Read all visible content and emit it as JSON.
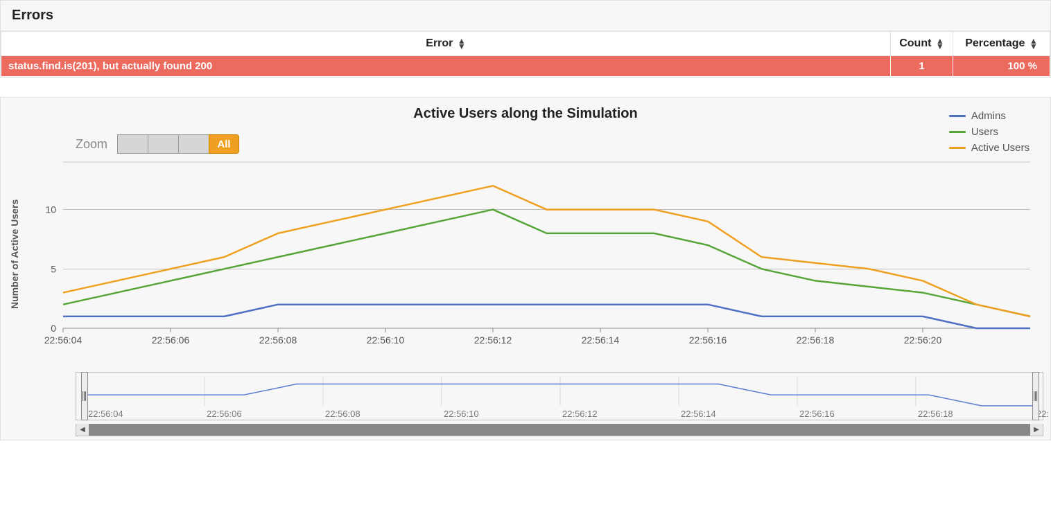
{
  "errors_panel": {
    "title": "Errors",
    "columns": [
      "Error",
      "Count",
      "Percentage"
    ],
    "rows": [
      {
        "error": "status.find.is(201), but actually found 200",
        "count": "1",
        "pct": "100 %"
      }
    ],
    "row_color": "#ec6a5e"
  },
  "chart": {
    "type": "line",
    "title": "Active Users along the Simulation",
    "ylabel": "Number of Active Users",
    "zoom_label": "Zoom",
    "zoom_buttons": [
      "",
      "",
      "",
      "All"
    ],
    "zoom_active_index": 3,
    "x_ticks": [
      "22:56:04",
      "22:56:06",
      "22:56:08",
      "22:56:10",
      "22:56:12",
      "22:56:14",
      "22:56:16",
      "22:56:18",
      "22:56:20"
    ],
    "y_ticks": [
      0,
      5,
      10
    ],
    "ylim": [
      0,
      14
    ],
    "grid_color": "#999999",
    "background_color": "#f7f7f7",
    "axis_color": "#888888",
    "tick_color": "#555555",
    "tick_fontsize": 14,
    "title_fontsize": 20,
    "line_width": 2.5,
    "legend": [
      {
        "name": "Admins",
        "color": "#4f71c4"
      },
      {
        "name": "Users",
        "color": "#57a539"
      },
      {
        "name": "Active Users",
        "color": "#f0a020"
      }
    ],
    "series": {
      "admins": {
        "color": "#4f71c4",
        "values": [
          1,
          1,
          1,
          1,
          2,
          2,
          2,
          2,
          2,
          2,
          2,
          2,
          2,
          1,
          1,
          1,
          1,
          0,
          0
        ]
      },
      "users": {
        "color": "#57a539",
        "values": [
          2,
          3,
          4,
          5,
          6,
          7,
          8,
          9,
          10,
          8,
          8,
          8,
          7,
          5,
          4,
          3.5,
          3,
          2,
          1
        ]
      },
      "active": {
        "color": "#f0a020",
        "values": [
          3,
          4,
          5,
          6,
          8,
          9,
          10,
          11,
          12,
          10,
          10,
          10,
          9,
          6,
          5.5,
          5,
          4,
          2,
          1
        ]
      }
    },
    "x_count": 19
  },
  "navigator": {
    "x_labels": [
      "22:56:04",
      "22:56:06",
      "22:56:08",
      "22:56:10",
      "22:56:12",
      "22:56:14",
      "22:56:16",
      "22:56:18",
      "22:"
    ],
    "line_color": "#5a7ed4",
    "values": [
      1,
      1,
      1,
      1,
      2,
      2,
      2,
      2,
      2,
      2,
      2,
      2,
      2,
      1,
      1,
      1,
      1,
      0,
      0
    ],
    "ymax": 2,
    "grid_color": "#cccccc",
    "label_color": "#777777"
  }
}
